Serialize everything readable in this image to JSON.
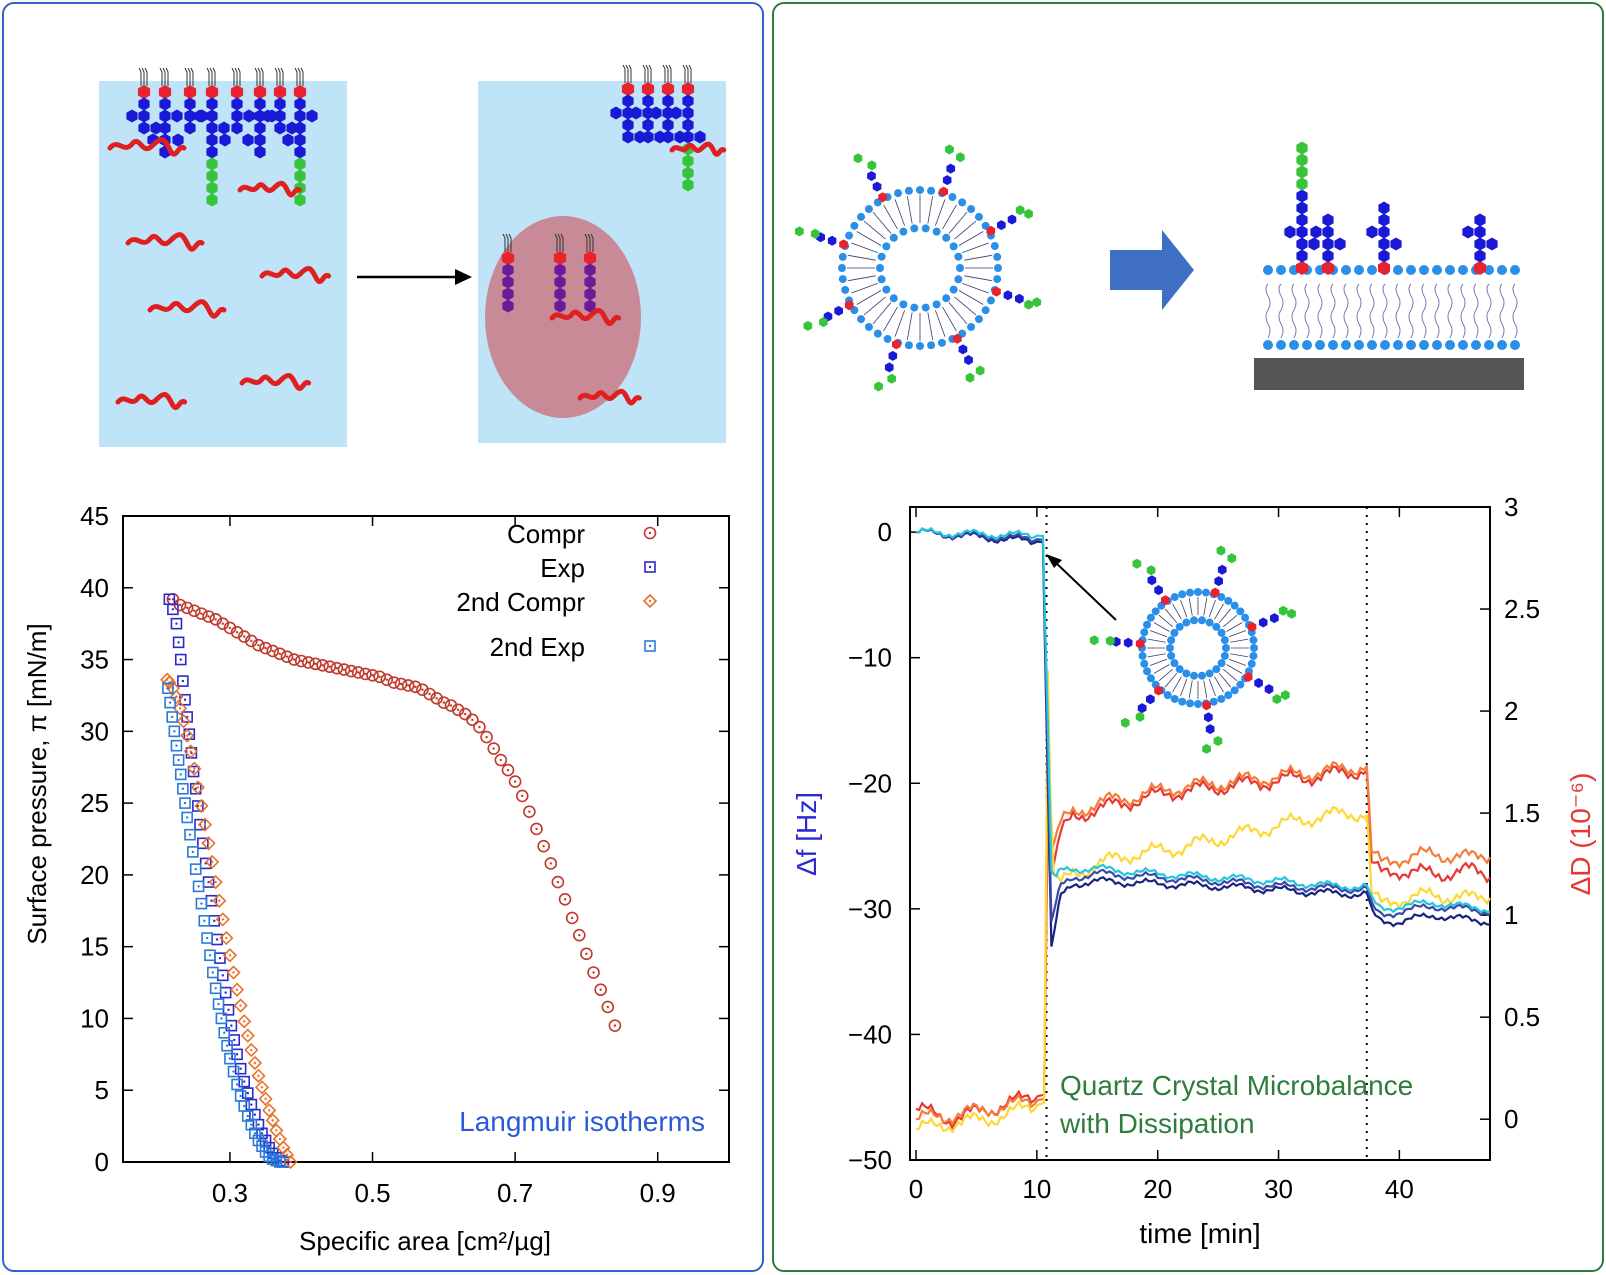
{
  "colors": {
    "left_border": "#2f63c7",
    "right_border": "#2e7d3a",
    "water": "#bfe3f7",
    "head_red": "#e8222e",
    "sugar_blue": "#1a1ad6",
    "sugar_green": "#35c43a",
    "protein_red": "#e02020",
    "lipid_blue": "#2a8fe8",
    "droplet": "#c97a86"
  },
  "chart_data": [
    {
      "type": "scatter",
      "xlabel": "Specific area [cm²/µg]",
      "ylabel": "Surface pressure, π [mN/m]",
      "xlim": [
        0.15,
        1.0
      ],
      "ylim": [
        0,
        45
      ],
      "xticks": [
        0.3,
        0.5,
        0.7,
        0.9
      ],
      "yticks": [
        0,
        5,
        10,
        15,
        20,
        25,
        30,
        35,
        40,
        45
      ],
      "legend_position": "top-right",
      "annotation": "Langmuir isotherms",
      "series": [
        {
          "name": "Compr",
          "marker": "circle-dot",
          "color": "#c0392b",
          "x": [
            0.84,
            0.83,
            0.82,
            0.81,
            0.8,
            0.79,
            0.78,
            0.77,
            0.76,
            0.75,
            0.74,
            0.73,
            0.72,
            0.71,
            0.7,
            0.69,
            0.68,
            0.67,
            0.66,
            0.65,
            0.64,
            0.63,
            0.62,
            0.61,
            0.6,
            0.59,
            0.58,
            0.57,
            0.56,
            0.55,
            0.54,
            0.53,
            0.52,
            0.51,
            0.5,
            0.49,
            0.48,
            0.47,
            0.46,
            0.45,
            0.44,
            0.43,
            0.42,
            0.41,
            0.4,
            0.39,
            0.38,
            0.37,
            0.36,
            0.35,
            0.34,
            0.33,
            0.32,
            0.31,
            0.3,
            0.29,
            0.28,
            0.27,
            0.26,
            0.25,
            0.24,
            0.23,
            0.22
          ],
          "y": [
            9.5,
            10.8,
            12.0,
            13.2,
            14.5,
            15.8,
            17.0,
            18.3,
            19.5,
            20.8,
            22.0,
            23.2,
            24.4,
            25.5,
            26.5,
            27.3,
            28.0,
            28.8,
            29.6,
            30.3,
            30.8,
            31.2,
            31.5,
            31.8,
            32.0,
            32.3,
            32.6,
            32.9,
            33.1,
            33.2,
            33.3,
            33.4,
            33.6,
            33.8,
            33.9,
            34.0,
            34.1,
            34.2,
            34.3,
            34.4,
            34.5,
            34.6,
            34.7,
            34.8,
            34.9,
            35.0,
            35.2,
            35.4,
            35.6,
            35.8,
            36.0,
            36.3,
            36.6,
            36.9,
            37.2,
            37.5,
            37.8,
            38.0,
            38.2,
            38.4,
            38.6,
            38.8,
            39.2
          ]
        },
        {
          "name": "Exp",
          "marker": "square-dot",
          "color": "#2a2ad0",
          "x": [
            0.215,
            0.22,
            0.225,
            0.228,
            0.231,
            0.234,
            0.237,
            0.24,
            0.243,
            0.246,
            0.249,
            0.252,
            0.255,
            0.258,
            0.262,
            0.266,
            0.27,
            0.274,
            0.278,
            0.282,
            0.286,
            0.29,
            0.294,
            0.298,
            0.302,
            0.306,
            0.31,
            0.315,
            0.32,
            0.325,
            0.33,
            0.335,
            0.34,
            0.345,
            0.35,
            0.355,
            0.36,
            0.365,
            0.37,
            0.375
          ],
          "y": [
            39.2,
            38.5,
            37.5,
            36.2,
            35.0,
            33.5,
            32.2,
            31.0,
            29.8,
            28.5,
            27.2,
            26.0,
            24.8,
            23.5,
            22.2,
            20.8,
            19.5,
            18.2,
            16.8,
            15.5,
            14.2,
            13.0,
            11.8,
            10.6,
            9.5,
            8.5,
            7.5,
            6.5,
            5.6,
            4.8,
            4.0,
            3.3,
            2.6,
            2.0,
            1.5,
            1.0,
            0.6,
            0.3,
            0.1,
            0.0
          ]
        },
        {
          "name": "2nd Compr",
          "marker": "diamond-dot",
          "color": "#e8712a",
          "x": [
            0.385,
            0.38,
            0.375,
            0.37,
            0.365,
            0.36,
            0.355,
            0.35,
            0.345,
            0.34,
            0.335,
            0.33,
            0.325,
            0.32,
            0.315,
            0.31,
            0.305,
            0.3,
            0.295,
            0.29,
            0.285,
            0.28,
            0.275,
            0.27,
            0.265,
            0.26,
            0.255,
            0.25,
            0.245,
            0.24,
            0.235,
            0.23,
            0.225,
            0.22,
            0.215,
            0.212
          ],
          "y": [
            0.0,
            0.5,
            1.0,
            1.6,
            2.2,
            2.9,
            3.6,
            4.4,
            5.2,
            6.0,
            6.9,
            7.8,
            8.8,
            9.8,
            10.9,
            12.0,
            13.2,
            14.4,
            15.6,
            16.9,
            18.2,
            19.5,
            20.9,
            22.2,
            23.5,
            24.8,
            26.1,
            27.4,
            28.6,
            29.7,
            30.7,
            31.6,
            32.4,
            33.0,
            33.4,
            33.6
          ]
        },
        {
          "name": "2nd Exp",
          "marker": "square-dot",
          "color": "#2a7ad8",
          "x": [
            0.213,
            0.216,
            0.219,
            0.222,
            0.225,
            0.228,
            0.231,
            0.234,
            0.237,
            0.24,
            0.244,
            0.248,
            0.252,
            0.256,
            0.26,
            0.264,
            0.268,
            0.272,
            0.276,
            0.28,
            0.284,
            0.288,
            0.292,
            0.296,
            0.3,
            0.305,
            0.31,
            0.315,
            0.32,
            0.325,
            0.33,
            0.335,
            0.34,
            0.345,
            0.35,
            0.355,
            0.36,
            0.365,
            0.37
          ],
          "y": [
            33.0,
            32.0,
            31.0,
            30.0,
            29.0,
            28.0,
            27.0,
            26.0,
            25.0,
            24.0,
            22.8,
            21.6,
            20.4,
            19.2,
            18.0,
            16.8,
            15.6,
            14.4,
            13.2,
            12.1,
            11.0,
            10.0,
            9.0,
            8.1,
            7.2,
            6.3,
            5.4,
            4.6,
            3.9,
            3.2,
            2.6,
            2.0,
            1.5,
            1.1,
            0.7,
            0.4,
            0.2,
            0.1,
            0.0
          ]
        }
      ]
    },
    {
      "type": "line",
      "xlabel": "time [min]",
      "ylabel_left": "Δf [Hz]",
      "ylabel_right": "ΔD (10⁻⁶)",
      "xlim": [
        -0.5,
        47.5
      ],
      "ylim_left": [
        -50,
        2
      ],
      "ylim_right": [
        -0.2,
        3
      ],
      "xticks": [
        0,
        10,
        20,
        30,
        40
      ],
      "yticks_left": [
        0,
        -10,
        -20,
        -30,
        -40,
        -50
      ],
      "yticks_right": [
        0,
        0.5,
        1,
        1.5,
        2,
        2.5,
        3
      ],
      "vlines": [
        10.8,
        37.3
      ],
      "annotation_line1": "Quartz Crystal Microbalance",
      "annotation_line2": "with Dissipation",
      "frequency_series": [
        {
          "color": "#1a237e",
          "t": [
            0,
            10.5,
            10.9,
            11.2,
            11.6,
            12,
            13,
            15,
            20,
            25,
            30,
            35,
            37.3,
            37.8,
            38.5,
            40,
            43,
            45,
            47.5
          ],
          "v": [
            0,
            -0.8,
            -20,
            -33,
            -31,
            -29,
            -28,
            -27.8,
            -28,
            -28.2,
            -28.5,
            -28.8,
            -28.8,
            -30.5,
            -31,
            -31,
            -30.5,
            -30.8,
            -31
          ]
        },
        {
          "color": "#3949ab",
          "t": [
            0,
            10.5,
            10.9,
            11.2,
            11.6,
            12,
            13,
            15,
            20,
            25,
            30,
            35,
            37.3,
            37.8,
            38.5,
            40,
            43,
            45,
            47.5
          ],
          "v": [
            0,
            -0.6,
            -18,
            -31,
            -29.5,
            -28.2,
            -27.5,
            -27.2,
            -27.5,
            -27.8,
            -28.2,
            -28.4,
            -28.4,
            -30,
            -30.5,
            -30.2,
            -29.8,
            -30,
            -30.2
          ]
        },
        {
          "color": "#26c6da",
          "t": [
            0,
            10.5,
            10.9,
            11.2,
            11.6,
            12,
            13,
            15,
            20,
            25,
            30,
            35,
            37.3,
            37.8,
            38.5,
            40,
            43,
            45,
            47.5
          ],
          "v": [
            0,
            -0.3,
            -15,
            -27,
            -27.5,
            -27,
            -26.8,
            -26.8,
            -27.2,
            -27.5,
            -27.8,
            -28.2,
            -28.2,
            -29.5,
            -30,
            -29.8,
            -29.5,
            -29.8,
            -30
          ]
        }
      ],
      "dissipation_series": [
        {
          "color": "#e53935",
          "t": [
            0,
            3,
            6,
            9,
            10.6,
            10.9,
            11.1,
            11.4,
            12,
            13,
            15,
            18,
            21,
            24,
            27,
            30,
            33,
            36,
            37.3,
            37.7,
            38.5,
            40,
            43,
            46,
            47.5
          ],
          "v": [
            0.05,
            0.0,
            0.05,
            0.1,
            0.12,
            1.5,
            1.2,
            1.25,
            1.4,
            1.48,
            1.52,
            1.56,
            1.6,
            1.62,
            1.64,
            1.66,
            1.68,
            1.7,
            1.72,
            1.25,
            1.2,
            1.22,
            1.2,
            1.22,
            1.2
          ]
        },
        {
          "color": "#f57c3a",
          "t": [
            0,
            3,
            6,
            9,
            10.6,
            10.9,
            11.1,
            11.4,
            12,
            13,
            15,
            18,
            21,
            24,
            27,
            30,
            33,
            36,
            37.3,
            37.7,
            38.5,
            40,
            43,
            46,
            47.5
          ],
          "v": [
            0.0,
            0.02,
            0.05,
            0.08,
            0.1,
            1.6,
            1.3,
            1.35,
            1.45,
            1.5,
            1.55,
            1.58,
            1.62,
            1.64,
            1.66,
            1.68,
            1.7,
            1.72,
            1.74,
            1.3,
            1.25,
            1.28,
            1.3,
            1.28,
            1.3
          ]
        },
        {
          "color": "#fdd835",
          "t": [
            0,
            3,
            6,
            9,
            10.6,
            10.9,
            11.1,
            11.4,
            12,
            13,
            15,
            18,
            21,
            24,
            27,
            30,
            33,
            36,
            37.3,
            37.7,
            38.5,
            40,
            43,
            46,
            47.5
          ],
          "v": [
            -0.05,
            -0.02,
            0.0,
            0.05,
            0.08,
            2.2,
            1.6,
            1.2,
            1.15,
            1.2,
            1.25,
            1.3,
            1.32,
            1.36,
            1.4,
            1.44,
            1.48,
            1.5,
            1.5,
            1.1,
            1.05,
            1.08,
            1.1,
            1.08,
            1.1
          ]
        }
      ]
    }
  ]
}
